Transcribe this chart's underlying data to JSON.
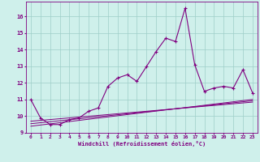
{
  "xlabel": "Windchill (Refroidissement éolien,°C)",
  "bg_color": "#cff0eb",
  "line_color": "#800080",
  "x_data": [
    0,
    1,
    2,
    3,
    4,
    5,
    6,
    7,
    8,
    9,
    10,
    11,
    12,
    13,
    14,
    15,
    16,
    17,
    18,
    19,
    20,
    21,
    22,
    23
  ],
  "y_main": [
    11.0,
    9.9,
    9.5,
    9.5,
    9.8,
    9.9,
    10.3,
    10.5,
    11.8,
    12.3,
    12.5,
    12.1,
    13.0,
    13.9,
    14.7,
    14.5,
    16.5,
    13.1,
    11.5,
    11.7,
    11.8,
    11.7,
    12.8,
    11.4
  ],
  "y_line1": [
    9.7,
    9.75,
    9.8,
    9.85,
    9.9,
    9.95,
    10.0,
    10.05,
    10.1,
    10.15,
    10.2,
    10.25,
    10.3,
    10.35,
    10.4,
    10.45,
    10.5,
    10.55,
    10.6,
    10.65,
    10.7,
    10.75,
    10.8,
    10.85
  ],
  "y_line2": [
    9.55,
    9.61,
    9.67,
    9.73,
    9.79,
    9.85,
    9.91,
    9.97,
    10.03,
    10.09,
    10.15,
    10.21,
    10.27,
    10.33,
    10.39,
    10.45,
    10.51,
    10.57,
    10.63,
    10.69,
    10.75,
    10.81,
    10.87,
    10.93
  ],
  "y_line3": [
    9.4,
    9.47,
    9.54,
    9.61,
    9.68,
    9.75,
    9.82,
    9.89,
    9.96,
    10.03,
    10.1,
    10.17,
    10.24,
    10.31,
    10.38,
    10.45,
    10.52,
    10.59,
    10.66,
    10.73,
    10.8,
    10.87,
    10.94,
    11.01
  ],
  "ylim": [
    9.0,
    16.9
  ],
  "yticks": [
    9,
    10,
    11,
    12,
    13,
    14,
    15,
    16
  ],
  "xlim": [
    -0.5,
    23.5
  ],
  "xticks": [
    0,
    1,
    2,
    3,
    4,
    5,
    6,
    7,
    8,
    9,
    10,
    11,
    12,
    13,
    14,
    15,
    16,
    17,
    18,
    19,
    20,
    21,
    22,
    23
  ]
}
